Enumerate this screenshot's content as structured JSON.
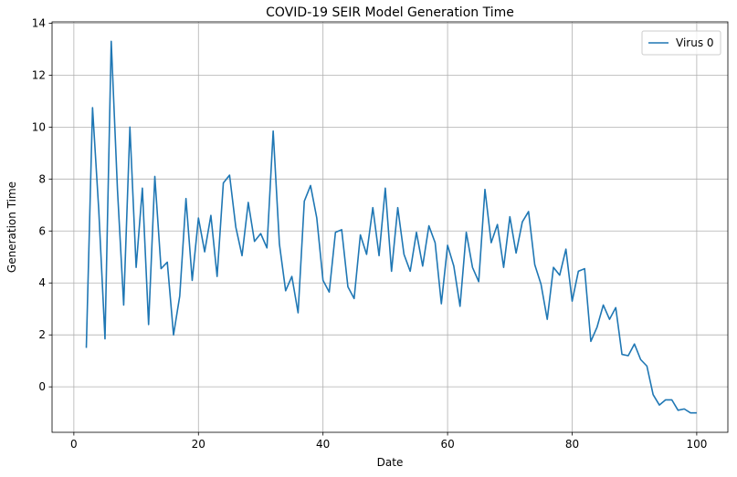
{
  "chart_data": {
    "type": "line",
    "title": "COVID-19 SEIR Model Generation Time",
    "xlabel": "Date",
    "ylabel": "Generation Time",
    "xlim": [
      -3.5,
      105
    ],
    "ylim": [
      -1.75,
      14.05
    ],
    "xticks": [
      0,
      20,
      40,
      60,
      80,
      100
    ],
    "yticks": [
      0,
      2,
      4,
      6,
      8,
      10,
      12,
      14
    ],
    "grid": true,
    "legend_position": "top-right",
    "colors": {
      "series": "#1f77b4",
      "grid": "#b0b0b0",
      "axis": "#000000"
    },
    "series": [
      {
        "name": "Virus 0",
        "x": [
          2,
          3,
          4,
          5,
          6,
          7,
          8,
          9,
          10,
          11,
          12,
          13,
          14,
          15,
          16,
          17,
          18,
          19,
          20,
          21,
          22,
          23,
          24,
          25,
          26,
          27,
          28,
          29,
          30,
          31,
          32,
          33,
          34,
          35,
          36,
          37,
          38,
          39,
          40,
          41,
          42,
          43,
          44,
          45,
          46,
          47,
          48,
          49,
          50,
          51,
          52,
          53,
          54,
          55,
          56,
          57,
          58,
          59,
          60,
          61,
          62,
          63,
          64,
          65,
          66,
          67,
          68,
          69,
          70,
          71,
          72,
          73,
          74,
          75,
          76,
          77,
          78,
          79,
          80,
          81,
          82,
          83,
          84,
          85,
          86,
          87,
          88,
          89,
          90,
          91,
          92,
          93,
          94,
          95,
          96,
          97,
          98,
          99,
          100
        ],
        "values": [
          1.5,
          10.75,
          6.8,
          1.85,
          13.3,
          7.6,
          3.15,
          10.0,
          4.6,
          7.65,
          2.4,
          8.1,
          4.55,
          4.8,
          2.0,
          3.5,
          7.25,
          4.1,
          6.5,
          5.2,
          6.6,
          4.25,
          7.85,
          8.15,
          6.15,
          5.05,
          7.1,
          5.6,
          5.9,
          5.35,
          9.85,
          5.5,
          3.7,
          4.25,
          2.85,
          7.15,
          7.75,
          6.5,
          4.1,
          3.65,
          5.95,
          6.05,
          3.85,
          3.4,
          5.85,
          5.1,
          6.9,
          5.05,
          7.65,
          4.45,
          6.9,
          5.1,
          4.45,
          5.95,
          4.65,
          6.2,
          5.55,
          3.2,
          5.45,
          4.65,
          3.1,
          5.95,
          4.6,
          4.05,
          7.6,
          5.55,
          6.25,
          4.6,
          6.55,
          5.15,
          6.35,
          6.75,
          4.7,
          3.95,
          2.6,
          4.6,
          4.3,
          5.3,
          3.3,
          4.45,
          4.55,
          1.75,
          2.3,
          3.15,
          2.6,
          3.05,
          1.25,
          1.2,
          1.65,
          1.05,
          0.8,
          -0.3,
          -0.7,
          -0.5,
          -0.5,
          -0.9,
          -0.85,
          -1.0,
          -1.0
        ]
      }
    ]
  }
}
